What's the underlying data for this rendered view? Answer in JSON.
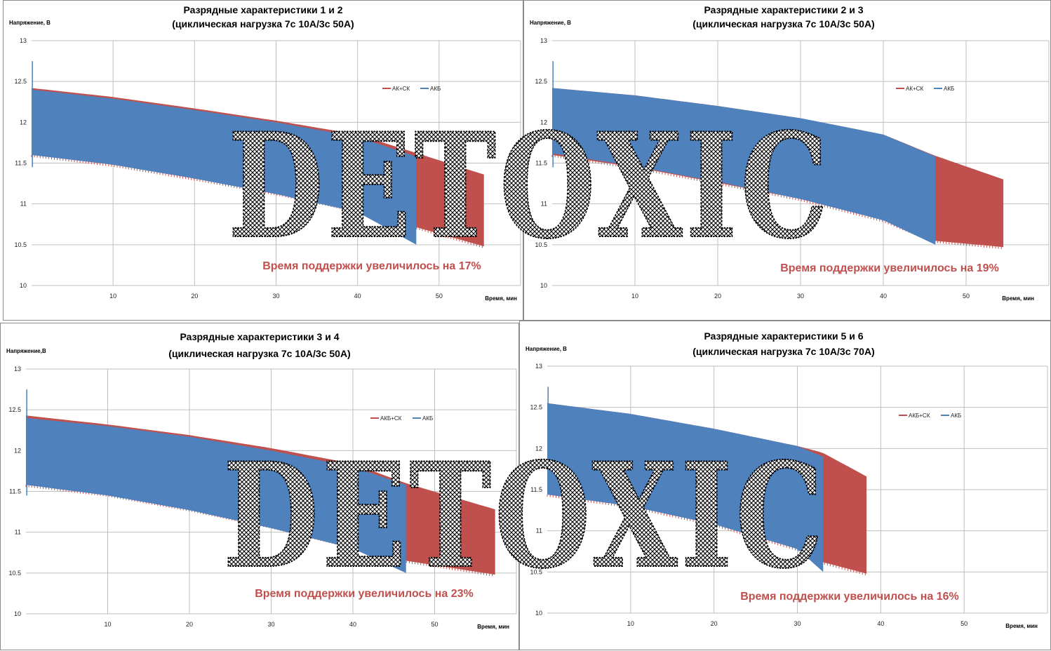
{
  "watermark": "DETOXIC",
  "colors": {
    "combo": "#c0504d",
    "battery": "#4f81bd",
    "grid": "#bfbfbf"
  },
  "chart_data": [
    {
      "type": "area",
      "title": "Разрядные характеристики 1 и 2",
      "subtitle": "(циклическая нагрузка 7с 10А/3с 50А)",
      "ylabel": "Напряжение, В",
      "xlabel": "Время, мин",
      "ylim": [
        10,
        13
      ],
      "xlim": [
        0,
        60
      ],
      "yticks": [
        "13",
        "12.5",
        "12",
        "11.5",
        "11",
        "10.5",
        "10"
      ],
      "xticks": [
        "10",
        "20",
        "30",
        "40",
        "50"
      ],
      "grid": true,
      "legend": "top-right",
      "note": "Время поддержки увеличилось на 17%",
      "series": [
        {
          "name": "АК+СК",
          "end": 55.5,
          "upper": [
            [
              0,
              12.42
            ],
            [
              10,
              12.31
            ],
            [
              20,
              12.17
            ],
            [
              30,
              12.02
            ],
            [
              40,
              11.85
            ],
            [
              47,
              11.63
            ],
            [
              55.5,
              11.36
            ]
          ],
          "lower": [
            [
              0,
              11.6
            ],
            [
              10,
              11.48
            ],
            [
              20,
              11.31
            ],
            [
              30,
              11.13
            ],
            [
              40,
              10.92
            ],
            [
              47,
              10.72
            ],
            [
              55.5,
              10.48
            ]
          ]
        },
        {
          "name": "АКБ",
          "end": 47.2,
          "upper": [
            [
              0,
              12.4
            ],
            [
              10,
              12.29
            ],
            [
              20,
              12.15
            ],
            [
              30,
              12.0
            ],
            [
              40,
              11.82
            ],
            [
              47.2,
              11.58
            ]
          ],
          "lower": [
            [
              0,
              11.6
            ],
            [
              10,
              11.48
            ],
            [
              20,
              11.31
            ],
            [
              30,
              11.12
            ],
            [
              40,
              10.9
            ],
            [
              47.2,
              10.5
            ]
          ]
        }
      ]
    },
    {
      "type": "area",
      "title": "Разрядные характеристики 2 и 3",
      "subtitle": "(циклическая нагрузка 7с 10А/3с 50А)",
      "ylabel": "Напряжение, В",
      "xlabel": "Время, мин",
      "ylim": [
        10,
        13
      ],
      "xlim": [
        0,
        60
      ],
      "yticks": [
        "13",
        "12.5",
        "12",
        "11.5",
        "11",
        "10.5",
        "10"
      ],
      "xticks": [
        "10",
        "20",
        "30",
        "40",
        "50"
      ],
      "grid": true,
      "legend": "top-right",
      "note": "Время поддержки увеличилось на 19%",
      "series": [
        {
          "name": "АК+СК",
          "end": 54.5,
          "upper": [
            [
              0,
              12.42
            ],
            [
              10,
              12.33
            ],
            [
              20,
              12.2
            ],
            [
              30,
              12.05
            ],
            [
              40,
              11.85
            ],
            [
              46,
              11.6
            ],
            [
              54.5,
              11.3
            ]
          ],
          "lower": [
            [
              0,
              11.6
            ],
            [
              10,
              11.45
            ],
            [
              20,
              11.26
            ],
            [
              30,
              11.06
            ],
            [
              40,
              10.8
            ],
            [
              46,
              10.55
            ],
            [
              54.5,
              10.47
            ]
          ]
        },
        {
          "name": "АКБ",
          "end": 46.3,
          "upper": [
            [
              0,
              12.42
            ],
            [
              10,
              12.33
            ],
            [
              20,
              12.2
            ],
            [
              30,
              12.05
            ],
            [
              40,
              11.85
            ],
            [
              46.3,
              11.58
            ]
          ],
          "lower": [
            [
              0,
              11.62
            ],
            [
              10,
              11.46
            ],
            [
              20,
              11.27
            ],
            [
              30,
              11.06
            ],
            [
              40,
              10.8
            ],
            [
              46.3,
              10.5
            ]
          ]
        }
      ]
    },
    {
      "type": "area",
      "title": "Разрядные характеристики 3 и 4",
      "subtitle": "(циклическая нагрузка 7с 10А/3с 50А)",
      "ylabel": "Напряжение,В",
      "xlabel": "Время, мин",
      "ylim": [
        10,
        13
      ],
      "xlim": [
        0,
        60
      ],
      "yticks": [
        "13",
        "12.5",
        "12",
        "11.5",
        "11",
        "10.5",
        "10"
      ],
      "xticks": [
        "10",
        "20",
        "30",
        "40",
        "50"
      ],
      "grid": true,
      "legend": "top-right",
      "note": "Время поддержки увеличилось на 23%",
      "series": [
        {
          "name": "АКБ+СК",
          "end": 57.4,
          "upper": [
            [
              0,
              12.43
            ],
            [
              10,
              12.32
            ],
            [
              20,
              12.19
            ],
            [
              30,
              12.03
            ],
            [
              40,
              11.84
            ],
            [
              46.5,
              11.6
            ],
            [
              57.4,
              11.28
            ]
          ],
          "lower": [
            [
              0,
              11.58
            ],
            [
              10,
              11.46
            ],
            [
              20,
              11.28
            ],
            [
              30,
              11.07
            ],
            [
              40,
              10.82
            ],
            [
              46.5,
              10.65
            ],
            [
              57.4,
              10.48
            ]
          ]
        },
        {
          "name": "АКБ",
          "end": 46.5,
          "upper": [
            [
              0,
              12.4
            ],
            [
              10,
              12.3
            ],
            [
              20,
              12.17
            ],
            [
              30,
              12.0
            ],
            [
              40,
              11.8
            ],
            [
              46.5,
              11.58
            ]
          ],
          "lower": [
            [
              0,
              11.58
            ],
            [
              10,
              11.45
            ],
            [
              20,
              11.27
            ],
            [
              30,
              11.05
            ],
            [
              40,
              10.8
            ],
            [
              46.5,
              10.5
            ]
          ]
        }
      ]
    },
    {
      "type": "area",
      "title": "Разрядные характеристики 5 и 6",
      "subtitle": "(циклическая нагрузка 7с 10А/3с 70А)",
      "ylabel": "Напряжение, В",
      "xlabel": "Время, мин",
      "ylim": [
        10,
        13
      ],
      "xlim": [
        0,
        60
      ],
      "yticks": [
        "13",
        "12.5",
        "12",
        "11.5",
        "11",
        "10.5",
        "10"
      ],
      "xticks": [
        "10",
        "20",
        "30",
        "40",
        "50"
      ],
      "grid": true,
      "legend": "top-right",
      "note": "Время поддержки увеличилось на 16%",
      "series": [
        {
          "name": "АКБ+СК",
          "end": 38.3,
          "upper": [
            [
              0,
              12.55
            ],
            [
              10,
              12.42
            ],
            [
              20,
              12.24
            ],
            [
              30,
              12.03
            ],
            [
              33,
              11.95
            ],
            [
              38.3,
              11.66
            ]
          ],
          "lower": [
            [
              0,
              11.44
            ],
            [
              10,
              11.3
            ],
            [
              20,
              11.08
            ],
            [
              30,
              10.78
            ],
            [
              33,
              10.62
            ],
            [
              38.3,
              10.48
            ]
          ]
        },
        {
          "name": "АКБ",
          "end": 33.1,
          "upper": [
            [
              0,
              12.55
            ],
            [
              10,
              12.42
            ],
            [
              20,
              12.24
            ],
            [
              30,
              12.03
            ],
            [
              33.1,
              11.9
            ]
          ],
          "lower": [
            [
              0,
              11.44
            ],
            [
              10,
              11.3
            ],
            [
              20,
              11.08
            ],
            [
              30,
              10.78
            ],
            [
              33.1,
              10.5
            ]
          ]
        }
      ]
    }
  ]
}
